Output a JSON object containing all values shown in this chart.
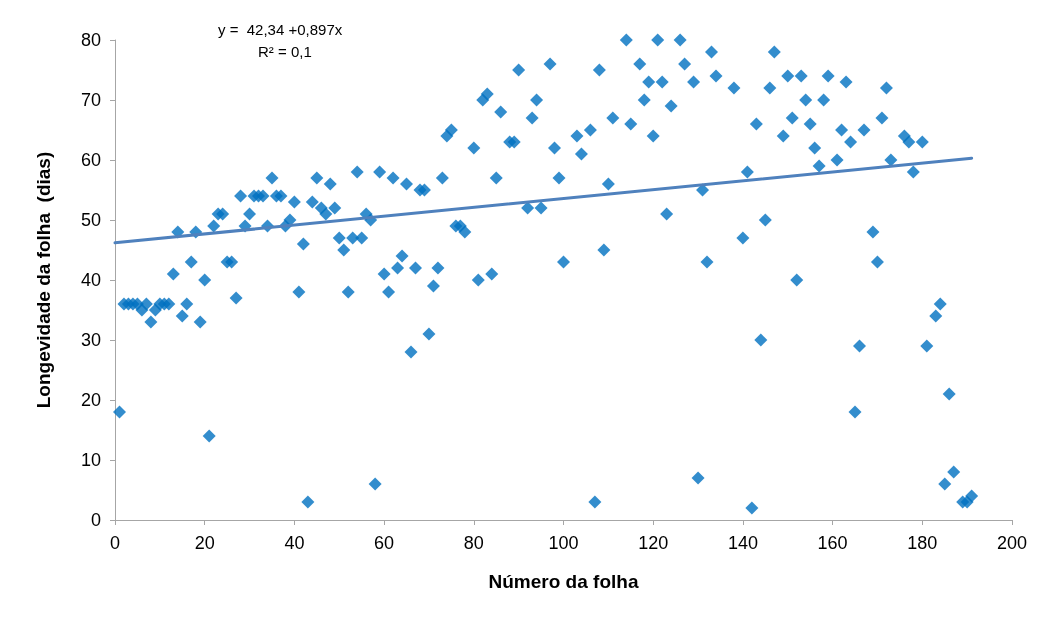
{
  "chart_data": {
    "type": "scatter",
    "xlabel": "Número da folha",
    "ylabel": "Longevidade da folha  (dias)",
    "annotations": [
      "y =  42,34 +0,897x",
      "R² = 0,1"
    ],
    "xlim": [
      0,
      200
    ],
    "xticks": [
      0,
      20,
      40,
      60,
      80,
      100,
      120,
      140,
      160,
      180,
      200
    ],
    "ylim": [
      0,
      80
    ],
    "yticks": [
      0,
      10,
      20,
      30,
      40,
      50,
      60,
      70,
      80
    ],
    "grid": false,
    "marker": "diamond",
    "series": [
      {
        "color": "#0070c0",
        "x": [
          1,
          2,
          3,
          4,
          5,
          6,
          7,
          8,
          9,
          10,
          11,
          12,
          13,
          14,
          15,
          16,
          17,
          18,
          19,
          20,
          21,
          22,
          23,
          24,
          25,
          26,
          27,
          28,
          29,
          30,
          31,
          32,
          33,
          34,
          35,
          36,
          37,
          38,
          39,
          40,
          41,
          42,
          43,
          44,
          45,
          46,
          47,
          48,
          49,
          50,
          51,
          52,
          53,
          54,
          55,
          56,
          57,
          58,
          59,
          60,
          61,
          62,
          63,
          64,
          65,
          66,
          67,
          68,
          69,
          70,
          71,
          72,
          73,
          74,
          75,
          76,
          77,
          78,
          80,
          81,
          82,
          83,
          84,
          85,
          86,
          88,
          89,
          90,
          92,
          93,
          94,
          95,
          97,
          98,
          99,
          100,
          103,
          104,
          106,
          107,
          108,
          109,
          110,
          111,
          114,
          115,
          117,
          118,
          119,
          120,
          121,
          122,
          123,
          124,
          126,
          127,
          129,
          130,
          131,
          132,
          133,
          134,
          138,
          140,
          141,
          142,
          143,
          144,
          145,
          146,
          147,
          149,
          150,
          151,
          152,
          153,
          154,
          155,
          156,
          157,
          158,
          159,
          161,
          162,
          163,
          164,
          165,
          166,
          167,
          169,
          170,
          171,
          172,
          173,
          176,
          177,
          178,
          180,
          181,
          183,
          184,
          185,
          186,
          187,
          189,
          190,
          191
        ],
        "values": [
          18,
          36,
          36,
          36,
          36,
          35,
          36,
          33,
          35,
          36,
          36,
          36,
          41,
          48,
          34,
          36,
          43,
          48,
          33,
          40,
          14,
          49,
          51,
          51,
          43,
          43,
          37,
          54,
          49,
          51,
          54,
          54,
          54,
          49,
          57,
          54,
          54,
          49,
          50,
          53,
          38,
          46,
          3,
          53,
          57,
          52,
          51,
          56,
          52,
          47,
          45,
          38,
          47,
          58,
          47,
          51,
          50,
          6,
          58,
          41,
          38,
          57,
          42,
          44,
          56,
          28,
          42,
          55,
          55,
          31,
          39,
          42,
          57,
          64,
          65,
          49,
          49,
          48,
          62,
          40,
          70,
          71,
          41,
          57,
          68,
          63,
          63,
          75,
          52,
          67,
          70,
          52,
          76,
          62,
          57,
          43,
          64,
          61,
          65,
          3,
          75,
          45,
          56,
          67,
          80,
          66,
          76,
          70,
          73,
          64,
          80,
          73,
          51,
          69,
          80,
          76,
          73,
          7,
          55,
          43,
          78,
          74,
          72,
          47,
          58,
          2,
          66,
          30,
          50,
          72,
          78,
          64,
          74,
          67,
          40,
          74,
          70,
          66,
          62,
          59,
          70,
          74,
          60,
          65,
          73,
          63,
          18,
          29,
          65,
          48,
          43,
          67,
          72,
          60,
          64,
          63,
          58,
          63,
          29,
          34,
          36,
          6,
          21,
          8,
          3,
          3,
          4
        ]
      },
      {
        "type": "line",
        "color": "#4f81bd",
        "marker": "none",
        "line_style": "solid",
        "x": [
          0,
          191
        ],
        "values": [
          46.2,
          60.3
        ]
      }
    ]
  }
}
